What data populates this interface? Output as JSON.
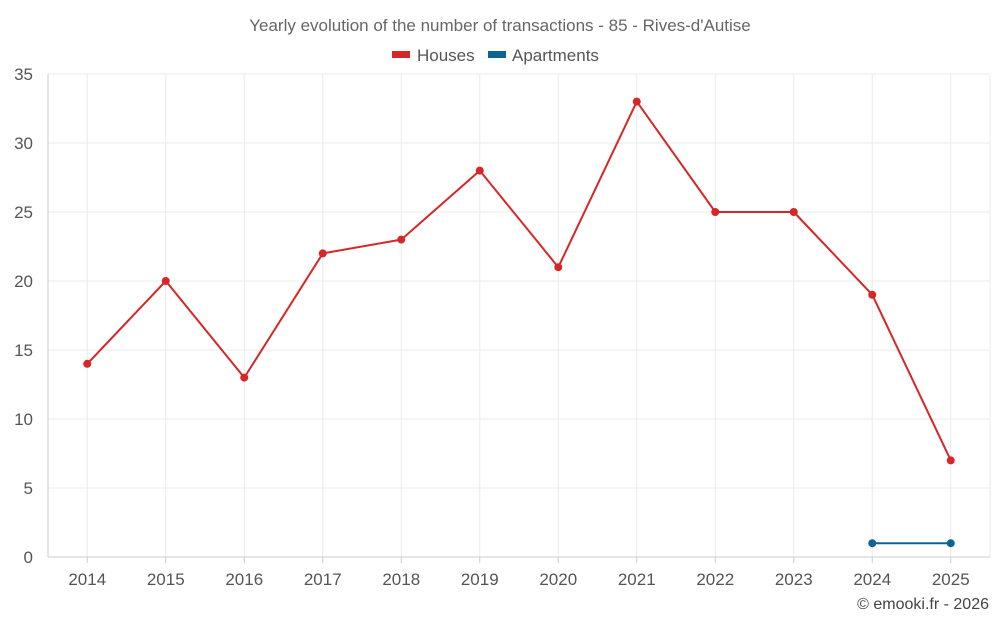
{
  "chart_data": {
    "type": "line",
    "title": "Yearly evolution of the number of transactions - 85 - Rives-d'Autise",
    "xlabel": "",
    "ylabel": "",
    "categories": [
      "2014",
      "2015",
      "2016",
      "2017",
      "2018",
      "2019",
      "2020",
      "2021",
      "2022",
      "2023",
      "2024",
      "2025"
    ],
    "ylim": [
      0,
      35
    ],
    "yticks": [
      0,
      5,
      10,
      15,
      20,
      25,
      30,
      35
    ],
    "grid": true,
    "legend_position": "top-center",
    "series": [
      {
        "name": "Houses",
        "color": "#d62728",
        "values": [
          14,
          20,
          13,
          22,
          23,
          28,
          21,
          33,
          25,
          25,
          19,
          7
        ]
      },
      {
        "name": "Apartments",
        "color": "#0b6494",
        "values": [
          null,
          null,
          null,
          null,
          null,
          null,
          null,
          null,
          null,
          null,
          1,
          1
        ]
      }
    ]
  },
  "credit": "© emooki.fr - 2026"
}
